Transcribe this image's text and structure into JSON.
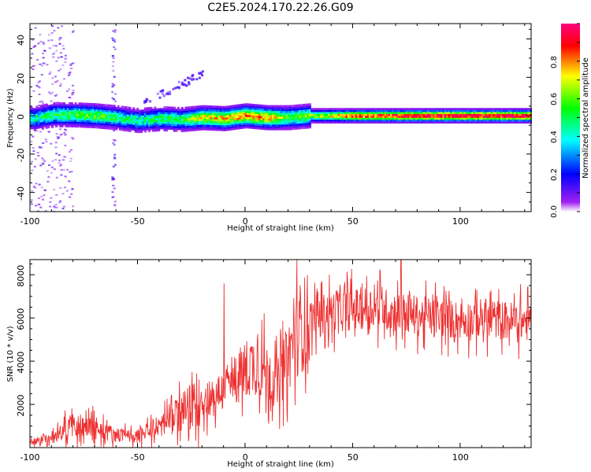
{
  "title": "C2E5.2024.170.22.26.G09",
  "chart_data": [
    {
      "type": "heatmap",
      "xlabel": "Height of straight line (km)",
      "ylabel": "Frequency (Hz)",
      "xlim": [
        -100,
        133
      ],
      "ylim": [
        -50,
        48
      ],
      "xticks": [
        "-100",
        "-50",
        "0",
        "50",
        "100"
      ],
      "yticks": [
        "-40",
        "-20",
        "0",
        "20",
        "40"
      ],
      "colorbar": {
        "label": "Normalized spectral amplitude",
        "range": [
          0,
          1
        ],
        "ticks": [
          "0.0",
          "0.2",
          "0.4",
          "0.6",
          "0.8"
        ],
        "colors": [
          "#ffffff",
          "#a020f0",
          "#0000ff",
          "#00ffff",
          "#00ff00",
          "#ffff00",
          "#ff0000",
          "#ff0080"
        ]
      },
      "ridge": {
        "description_x": [
          -98,
          -90,
          -80,
          -70,
          -60,
          -50,
          -40,
          -30,
          -20,
          -10,
          0,
          10,
          20,
          30,
          40,
          50,
          60,
          70,
          80,
          90,
          100,
          110,
          120,
          133
        ],
        "freq_hz": [
          -1.5,
          0.5,
          0.5,
          0,
          -1,
          -2.5,
          -1.5,
          -2,
          -1,
          -1.5,
          0,
          -1,
          -1,
          0,
          0,
          0,
          0,
          0,
          0,
          0,
          0,
          0,
          0,
          0
        ],
        "amplitude": [
          0.45,
          0.5,
          0.55,
          0.6,
          0.5,
          0.45,
          0.5,
          0.5,
          0.7,
          0.75,
          0.8,
          0.8,
          0.55,
          0.6,
          0.7,
          0.85,
          0.85,
          0.9,
          0.95,
          0.95,
          0.95,
          0.95,
          0.95,
          0.95
        ]
      }
    },
    {
      "type": "line",
      "xlabel": "Height of straight line (km)",
      "ylabel": "SNR (10 * v/v)",
      "xlim": [
        -100,
        133
      ],
      "ylim": [
        0,
        8700
      ],
      "xticks": [
        "-100",
        "-50",
        "0",
        "50",
        "100"
      ],
      "yticks": [
        "2000",
        "4000",
        "6000",
        "8000"
      ],
      "color": "#ee3030",
      "trend": {
        "x": [
          -100,
          -90,
          -80,
          -70,
          -60,
          -50,
          -40,
          -30,
          -20,
          -10,
          0,
          5,
          10,
          15,
          20,
          25,
          30,
          40,
          50,
          60,
          70,
          80,
          90,
          100,
          110,
          120,
          133
        ],
        "y": [
          300,
          400,
          1100,
          900,
          600,
          500,
          1000,
          1600,
          2200,
          2600,
          3600,
          3900,
          3500,
          2900,
          4200,
          5500,
          6000,
          6300,
          6400,
          6500,
          6300,
          6100,
          6000,
          5900,
          6000,
          5900,
          5800
        ]
      }
    }
  ]
}
